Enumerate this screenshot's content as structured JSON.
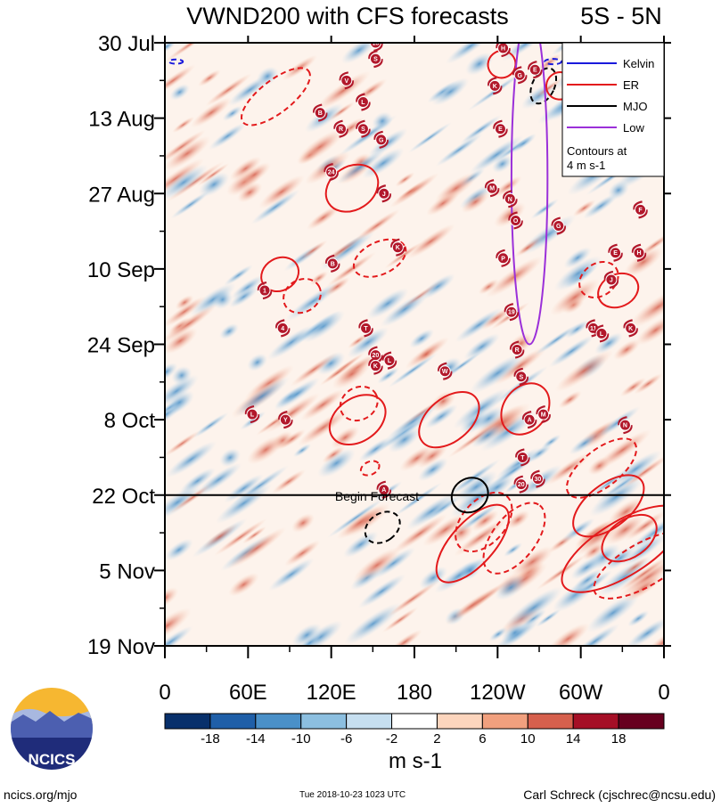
{
  "chart_data": {
    "type": "heatmap",
    "title": "VWND200 with CFS forecasts",
    "region_label": "5S - 5N",
    "variable": "VWND200",
    "units_label": "m s-1",
    "x_axis": {
      "ticks": [
        {
          "lon": 0,
          "label": "0"
        },
        {
          "lon": 60,
          "label": "60E"
        },
        {
          "lon": 120,
          "label": "120E"
        },
        {
          "lon": 180,
          "label": "180"
        },
        {
          "lon": 240,
          "label": "120W"
        },
        {
          "lon": 300,
          "label": "60W"
        },
        {
          "lon": 360,
          "label": "0"
        }
      ],
      "range": [
        0,
        360
      ]
    },
    "y_axis": {
      "ticks": [
        {
          "day": 0,
          "label": "30 Jul"
        },
        {
          "day": 14,
          "label": "13 Aug"
        },
        {
          "day": 28,
          "label": "27 Aug"
        },
        {
          "day": 42,
          "label": "10 Sep"
        },
        {
          "day": 56,
          "label": "24 Sep"
        },
        {
          "day": 70,
          "label": "8 Oct"
        },
        {
          "day": 84,
          "label": "22 Oct"
        },
        {
          "day": 98,
          "label": "5 Nov"
        },
        {
          "day": 112,
          "label": "19 Nov"
        }
      ],
      "range": [
        0,
        112
      ]
    },
    "forecast_start": {
      "day": 84,
      "label": "Begin Forecast"
    },
    "colorbar": {
      "levels": [
        "-18",
        "-14",
        "-10",
        "-6",
        "-2",
        "2",
        "6",
        "10",
        "14",
        "18"
      ],
      "colors": [
        "#08306b",
        "#1f5fa8",
        "#4a90c8",
        "#8cbfe0",
        "#c6dff0",
        "#ffffff",
        "#fcd5bd",
        "#f1a07e",
        "#d6604d",
        "#a50f26",
        "#67001f"
      ]
    },
    "legend": {
      "position": "top-right",
      "entries": [
        {
          "label": "Kelvin",
          "color": "#1a1adc"
        },
        {
          "label": "ER",
          "color": "#e31a1c"
        },
        {
          "label": "MJO",
          "color": "#000000"
        },
        {
          "label": "Low",
          "color": "#9b30d9"
        }
      ],
      "note_line1": "Contours at",
      "note_line2": "4 m s-1"
    },
    "er_contours": [
      {
        "lon": 80,
        "day": 10,
        "rlon": 30,
        "rday": 3,
        "angle": -38,
        "dashed": true
      },
      {
        "lon": 135,
        "day": 27,
        "rlon": 20,
        "rday": 4,
        "angle": -33,
        "dashed": false
      },
      {
        "lon": 243,
        "day": 4,
        "rlon": 10,
        "rday": 2.5,
        "angle": -30,
        "dashed": false
      },
      {
        "lon": 285,
        "day": 8,
        "rlon": 10,
        "rday": 2.5,
        "angle": -40,
        "dashed": false
      },
      {
        "lon": 83,
        "day": 43,
        "rlon": 14,
        "rday": 3,
        "angle": -30,
        "dashed": false
      },
      {
        "lon": 99,
        "day": 47,
        "rlon": 14,
        "rday": 3,
        "angle": -30,
        "dashed": true
      },
      {
        "lon": 155,
        "day": 40,
        "rlon": 20,
        "rday": 3,
        "angle": -25,
        "dashed": true
      },
      {
        "lon": 140,
        "day": 67,
        "rlon": 14,
        "rday": 3,
        "angle": -30,
        "dashed": true
      },
      {
        "lon": 139,
        "day": 70,
        "rlon": 22,
        "rday": 4,
        "angle": -35,
        "dashed": false
      },
      {
        "lon": 205,
        "day": 70,
        "rlon": 25,
        "rday": 4,
        "angle": -40,
        "dashed": false
      },
      {
        "lon": 260,
        "day": 68,
        "rlon": 20,
        "rday": 4,
        "angle": -52,
        "dashed": false
      },
      {
        "lon": 230,
        "day": 89,
        "rlon": 25,
        "rday": 4,
        "angle": -48,
        "dashed": true
      },
      {
        "lon": 222,
        "day": 93,
        "rlon": 35,
        "rday": 4,
        "angle": -48,
        "dashed": false
      },
      {
        "lon": 252,
        "day": 92,
        "rlon": 30,
        "rday": 4,
        "angle": -52,
        "dashed": true
      },
      {
        "lon": 315,
        "day": 79,
        "rlon": 30,
        "rday": 3.5,
        "angle": -38,
        "dashed": true
      },
      {
        "lon": 320,
        "day": 86,
        "rlon": 30,
        "rday": 4,
        "angle": -38,
        "dashed": false
      },
      {
        "lon": 330,
        "day": 94,
        "rlon": 50,
        "rday": 5,
        "angle": -32,
        "dashed": false
      },
      {
        "lon": 335,
        "day": 92,
        "rlon": 22,
        "rday": 3.5,
        "angle": -35,
        "dashed": false
      },
      {
        "lon": 345,
        "day": 97,
        "rlon": 40,
        "rday": 4,
        "angle": -30,
        "dashed": true
      },
      {
        "lon": 327,
        "day": 46,
        "rlon": 15,
        "rday": 3,
        "angle": -25,
        "dashed": false
      },
      {
        "lon": 313,
        "day": 44,
        "rlon": 15,
        "rday": 3,
        "angle": -35,
        "dashed": true
      },
      {
        "lon": 148,
        "day": 79,
        "rlon": 7,
        "rday": 1.2,
        "angle": -25,
        "dashed": true
      }
    ],
    "mjo_contours": [
      {
        "lon": 273,
        "day": 8,
        "rlon": 8,
        "rday": 3.5,
        "angle": 25,
        "dashed": true
      },
      {
        "lon": 220,
        "day": 84,
        "rlon": 12,
        "rday": 3.5,
        "angle": 55,
        "dashed": false
      },
      {
        "lon": 157,
        "day": 90,
        "rlon": 10,
        "rday": 3.5,
        "angle": 55,
        "dashed": true
      }
    ],
    "kelvin_contours": [
      {
        "lon": 8,
        "day": 3.5,
        "rlon": 5,
        "rday": 0.4,
        "angle": 0,
        "dashed": true
      },
      {
        "lon": 280,
        "day": 3.5,
        "rlon": 6,
        "rday": 0.5,
        "angle": 0,
        "dashed": true
      }
    ],
    "low_contours": [
      {
        "lon": 263,
        "day": 25,
        "rlon": 13,
        "rday": 31,
        "angle": 0,
        "dashed": false
      }
    ],
    "storm_markers": [
      {
        "lon": 152,
        "day": 0,
        "label": "18"
      },
      {
        "lon": 152,
        "day": 3,
        "label": "S"
      },
      {
        "lon": 131,
        "day": 7,
        "label": "V"
      },
      {
        "lon": 143,
        "day": 11,
        "label": "L"
      },
      {
        "lon": 112,
        "day": 13,
        "label": "B"
      },
      {
        "lon": 127,
        "day": 16,
        "label": "R"
      },
      {
        "lon": 143,
        "day": 16,
        "label": "S"
      },
      {
        "lon": 156,
        "day": 18,
        "label": "G"
      },
      {
        "lon": 120,
        "day": 24,
        "label": "24"
      },
      {
        "lon": 158,
        "day": 28,
        "label": "J"
      },
      {
        "lon": 244,
        "day": 1,
        "label": "H"
      },
      {
        "lon": 256,
        "day": 6,
        "label": "G"
      },
      {
        "lon": 238,
        "day": 8,
        "label": "K"
      },
      {
        "lon": 267,
        "day": 5,
        "label": "E"
      },
      {
        "lon": 242,
        "day": 16,
        "label": "E"
      },
      {
        "lon": 236,
        "day": 27,
        "label": "M"
      },
      {
        "lon": 249,
        "day": 29,
        "label": "N"
      },
      {
        "lon": 253,
        "day": 33,
        "label": "O"
      },
      {
        "lon": 284,
        "day": 34,
        "label": "G"
      },
      {
        "lon": 343,
        "day": 31,
        "label": "F"
      },
      {
        "lon": 244,
        "day": 40,
        "label": "P"
      },
      {
        "lon": 250,
        "day": 50,
        "label": "19"
      },
      {
        "lon": 254,
        "day": 57,
        "label": "R"
      },
      {
        "lon": 257,
        "day": 62,
        "label": "S"
      },
      {
        "lon": 263,
        "day": 70,
        "label": "A"
      },
      {
        "lon": 273,
        "day": 69,
        "label": "M"
      },
      {
        "lon": 258,
        "day": 77,
        "label": "T"
      },
      {
        "lon": 257,
        "day": 82,
        "label": "20"
      },
      {
        "lon": 269,
        "day": 81,
        "label": "30"
      },
      {
        "lon": 325,
        "day": 39,
        "label": "E"
      },
      {
        "lon": 342,
        "day": 39,
        "label": "H"
      },
      {
        "lon": 322,
        "day": 44,
        "label": "J"
      },
      {
        "lon": 309,
        "day": 53,
        "label": "11"
      },
      {
        "lon": 315,
        "day": 54,
        "label": "L"
      },
      {
        "lon": 336,
        "day": 53,
        "label": "K"
      },
      {
        "lon": 332,
        "day": 71,
        "label": "N"
      },
      {
        "lon": 168,
        "day": 38,
        "label": "K"
      },
      {
        "lon": 121,
        "day": 41,
        "label": "B"
      },
      {
        "lon": 72,
        "day": 46,
        "label": "1"
      },
      {
        "lon": 85,
        "day": 53,
        "label": "4"
      },
      {
        "lon": 145,
        "day": 53,
        "label": "T"
      },
      {
        "lon": 152,
        "day": 58,
        "label": "20"
      },
      {
        "lon": 152,
        "day": 60,
        "label": "K"
      },
      {
        "lon": 162,
        "day": 59,
        "label": "L"
      },
      {
        "lon": 202,
        "day": 61,
        "label": "W"
      },
      {
        "lon": 63,
        "day": 69,
        "label": "L"
      },
      {
        "lon": 87,
        "day": 70,
        "label": "Y"
      },
      {
        "lon": 158,
        "day": 83,
        "label": "A"
      }
    ]
  },
  "footer": {
    "site": "ncics.org/mjo",
    "timestamp": "Tue 2018-10-23 1023 UTC",
    "author": "Carl Schreck (cjschrec@ncsu.edu)",
    "logo_text": "NCICS"
  }
}
